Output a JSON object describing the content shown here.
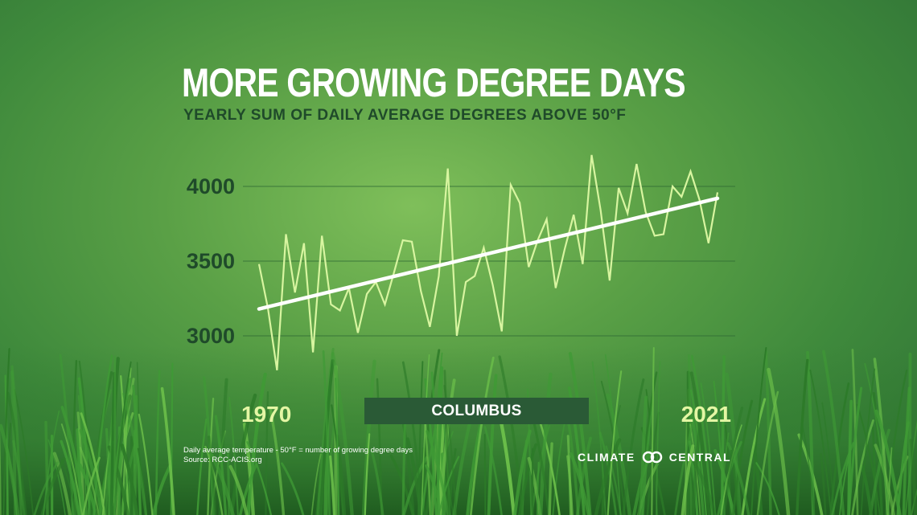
{
  "title": "MORE GROWING DEGREE DAYS",
  "subtitle": "YEARLY SUM OF DAILY AVERAGE DEGREES ABOVE 50°F",
  "location": "COLUMBUS",
  "footnote": {
    "line1": "Daily average temperature - 50°F = number of growing degree days",
    "line2": "Source: RCC-ACIS.org"
  },
  "logo": {
    "left_text": "CLIMATE",
    "right_text": "CENTRAL",
    "icon": "linked-rings-icon"
  },
  "colors": {
    "data_line": "#d8f5a0",
    "trend_line": "#ffffff",
    "badge": "#2a5a36",
    "tick_text": "#1f4a2a",
    "year_text": "#e4f6a4"
  },
  "chart_data": {
    "type": "line",
    "ylim": [
      2750,
      4250
    ],
    "yticks": [
      3000,
      3500,
      4000
    ],
    "ytick_labels": [
      "3000",
      "3500",
      "4000"
    ],
    "xlim": [
      1970,
      2021
    ],
    "xtick_labels": [
      "1970",
      "2021"
    ],
    "grid": "horizontal",
    "series": [
      {
        "x": [
          1970,
          1971,
          1972,
          1973,
          1974,
          1975,
          1976,
          1977,
          1978,
          1979,
          1980,
          1981,
          1982,
          1983,
          1984,
          1985,
          1986,
          1987,
          1988,
          1989,
          1990,
          1991,
          1992,
          1993,
          1994,
          1995,
          1996,
          1997,
          1998,
          1999,
          2000,
          2001,
          2002,
          2003,
          2004,
          2005,
          2006,
          2007,
          2008,
          2009,
          2010,
          2011,
          2012,
          2013,
          2014,
          2015,
          2016,
          2017,
          2018,
          2019,
          2020,
          2021
        ],
        "values": [
          3480,
          3180,
          2770,
          3680,
          3290,
          3620,
          2890,
          3670,
          3210,
          3170,
          3320,
          3020,
          3280,
          3360,
          3210,
          3420,
          3640,
          3630,
          3300,
          3060,
          3400,
          4120,
          3000,
          3360,
          3400,
          3590,
          3340,
          3030,
          4010,
          3890,
          3460,
          3640,
          3780,
          3320,
          3580,
          3810,
          3480,
          4210,
          3840,
          3370,
          3990,
          3820,
          4150,
          3830,
          3670,
          3680,
          4000,
          3930,
          4100,
          3910,
          3620,
          3960
        ]
      },
      {
        "x": [
          1970,
          2021
        ],
        "values": [
          3180,
          3920
        ]
      }
    ]
  }
}
